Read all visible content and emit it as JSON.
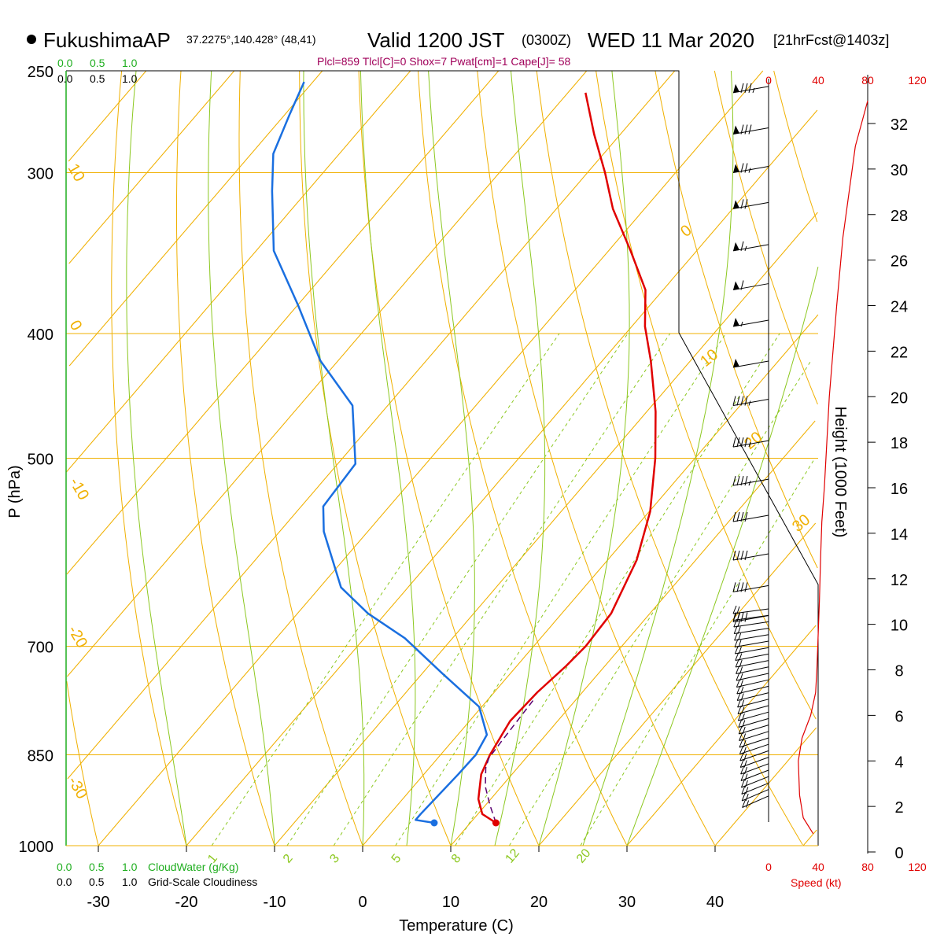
{
  "header": {
    "station": "FukushimaAP",
    "coords": "37.2275°,140.428° (48,41)",
    "valid": "Valid 1200 JST",
    "zulu": "(0300Z)",
    "date": "WED 11 Mar 2020",
    "forecast": "[21hrFcst@1403z]",
    "indices": "Plcl=859 Tlcl[C]=0 Shox=7 Pwat[cm]=1 Cape[J]= 58"
  },
  "labels": {
    "ylabel": "P (hPa)",
    "xlabel": "Temperature (C)",
    "height_label": "Height (1000 Feet)",
    "speed_label": "Speed (kt)",
    "cloudwater_label": "CloudWater (g/Kg)",
    "cloudiness_label": "Grid-Scale Cloudiness",
    "cw_ticks": [
      "0.0",
      "0.5",
      "1.0"
    ],
    "cl_ticks_top": [
      "0.0",
      "0.5",
      "1.0"
    ],
    "cl_ticks_bottom": [
      "0.0",
      "0.5",
      "1.0"
    ],
    "cw_ticks_top": [
      "0.0",
      "0.5",
      "1.0"
    ]
  },
  "colors": {
    "temperature": "#e00000",
    "dewpoint": "#1a6fe0",
    "parcel": "#5a0070",
    "isotherm": "#f0b000",
    "dry_adiabat": "#f0b000",
    "moist_adiabat": "#8cc820",
    "mixing_ratio": "#8cc820",
    "cloud": "#1fae1f",
    "speed": "#e00000"
  },
  "chart_data": {
    "type": "line",
    "pressure_ticks": [
      250,
      300,
      400,
      500,
      700,
      850,
      1000
    ],
    "temperature_ticks": [
      -30,
      -20,
      -10,
      0,
      10,
      20,
      30,
      40
    ],
    "height_ticks_kft": [
      0,
      2,
      4,
      6,
      8,
      10,
      12,
      14,
      16,
      18,
      20,
      22,
      24,
      26,
      28,
      30,
      32
    ],
    "speed_ticks_kt": [
      0,
      40,
      80,
      120
    ],
    "isotherm_labels": [
      "10",
      "0",
      "-10",
      "-20",
      "-30",
      "0",
      "10",
      "20",
      "30"
    ],
    "mixing_ratio_labels": [
      "1",
      "2",
      "3",
      "5",
      "8",
      "12",
      "20"
    ],
    "series": [
      {
        "name": "Temperature",
        "points": [
          [
            960,
            12.9
          ],
          [
            945,
            10.5
          ],
          [
            920,
            8.6
          ],
          [
            880,
            6.5
          ],
          [
            850,
            5.6
          ],
          [
            800,
            4.6
          ],
          [
            760,
            4.9
          ],
          [
            725,
            5.6
          ],
          [
            700,
            5.9
          ],
          [
            660,
            5.6
          ],
          [
            600,
            3.3
          ],
          [
            550,
            0.1
          ],
          [
            500,
            -4.5
          ],
          [
            460,
            -9.0
          ],
          [
            420,
            -14.5
          ],
          [
            395,
            -18.5
          ],
          [
            370,
            -22.0
          ],
          [
            345,
            -27.5
          ],
          [
            320,
            -33.6
          ],
          [
            300,
            -38.0
          ],
          [
            280,
            -43.0
          ],
          [
            260,
            -48.0
          ]
        ]
      },
      {
        "name": "Dewpoint",
        "points": [
          [
            960,
            5.9
          ],
          [
            955,
            3.5
          ],
          [
            945,
            3.5
          ],
          [
            880,
            3.9
          ],
          [
            850,
            4.0
          ],
          [
            820,
            3.3
          ],
          [
            780,
            -0.3
          ],
          [
            735,
            -7.7
          ],
          [
            690,
            -15.4
          ],
          [
            660,
            -22.0
          ],
          [
            630,
            -27.6
          ],
          [
            570,
            -35.0
          ],
          [
            545,
            -37.5
          ],
          [
            505,
            -38.0
          ],
          [
            455,
            -44.0
          ],
          [
            420,
            -52.0
          ],
          [
            380,
            -60.0
          ],
          [
            345,
            -68.0
          ],
          [
            310,
            -74.0
          ],
          [
            290,
            -77.5
          ],
          [
            270,
            -79.5
          ],
          [
            255,
            -81.0
          ]
        ]
      },
      {
        "name": "Parcel",
        "points": [
          [
            960,
            12.9
          ],
          [
            930,
            10.5
          ],
          [
            900,
            8.2
          ],
          [
            870,
            6.4
          ],
          [
            855,
            5.8
          ],
          [
            830,
            5.6
          ],
          [
            800,
            5.4
          ],
          [
            770,
            5.2
          ]
        ]
      }
    ],
    "wind_speed_profile_kt": [
      [
        0.8,
        36
      ],
      [
        1.5,
        28
      ],
      [
        2.5,
        25
      ],
      [
        4.0,
        24
      ],
      [
        5.0,
        27
      ],
      [
        6.0,
        34
      ],
      [
        7.0,
        38
      ],
      [
        8.0,
        39
      ],
      [
        9.5,
        40
      ],
      [
        11.0,
        41
      ],
      [
        13.0,
        42
      ],
      [
        14.5,
        43
      ],
      [
        16.0,
        45
      ],
      [
        20.0,
        49
      ],
      [
        24.0,
        55
      ],
      [
        27.0,
        60
      ],
      [
        29.0,
        65
      ],
      [
        31.0,
        70
      ],
      [
        33.0,
        80
      ]
    ],
    "wind_barbs": [
      {
        "p": 260,
        "speed_kt": 85,
        "dir_deg": 250
      },
      {
        "p": 280,
        "speed_kt": 80,
        "dir_deg": 250
      },
      {
        "p": 300,
        "speed_kt": 75,
        "dir_deg": 250
      },
      {
        "p": 320,
        "speed_kt": 70,
        "dir_deg": 255
      },
      {
        "p": 345,
        "speed_kt": 65,
        "dir_deg": 255
      },
      {
        "p": 370,
        "speed_kt": 60,
        "dir_deg": 255
      },
      {
        "p": 395,
        "speed_kt": 55,
        "dir_deg": 255
      },
      {
        "p": 425,
        "speed_kt": 50,
        "dir_deg": 255
      },
      {
        "p": 455,
        "speed_kt": 45,
        "dir_deg": 260
      },
      {
        "p": 490,
        "speed_kt": 45,
        "dir_deg": 265
      },
      {
        "p": 525,
        "speed_kt": 45,
        "dir_deg": 270
      },
      {
        "p": 560,
        "speed_kt": 40,
        "dir_deg": 270
      },
      {
        "p": 600,
        "speed_kt": 40,
        "dir_deg": 265
      },
      {
        "p": 635,
        "speed_kt": 40,
        "dir_deg": 270
      },
      {
        "p": 670,
        "speed_kt": 40,
        "dir_deg": 275
      }
    ]
  }
}
